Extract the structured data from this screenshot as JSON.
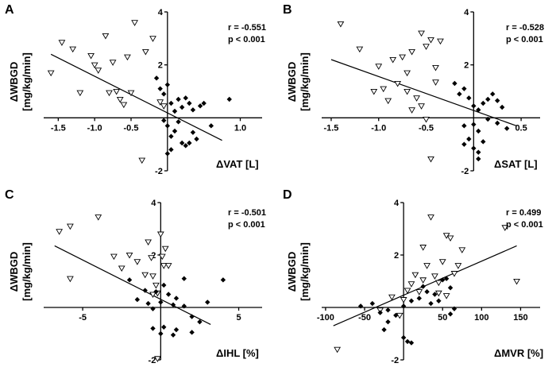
{
  "chart_data": [
    {
      "type": "scatter",
      "panel": "A",
      "xlabel": "ΔVAT [L]",
      "ylabel": "ΔWBGD",
      "ylabel_unit": "[mg/kg/min]",
      "stats": {
        "r": "r = -0.551",
        "p": "p < 0.001"
      },
      "xlim": [
        -1.7,
        1.3
      ],
      "ylim": [
        -2,
        4
      ],
      "xticks": [
        -1.5,
        -1.0,
        -0.5,
        1.0
      ],
      "xtick_labels": [
        "-1.5",
        "-1.0",
        "-0.5",
        "1.0"
      ],
      "yticks": [
        -2,
        2,
        4
      ],
      "ytick_labels": [
        "-2",
        "2",
        "4"
      ],
      "fit": [
        [
          -1.6,
          2.4
        ],
        [
          0.75,
          -0.85
        ]
      ],
      "series": [
        {
          "marker": "open-triangle",
          "points": [
            [
              -1.6,
              1.7
            ],
            [
              -1.45,
              2.85
            ],
            [
              -1.3,
              2.6
            ],
            [
              -1.2,
              0.95
            ],
            [
              -1.05,
              2.35
            ],
            [
              -1.0,
              2.0
            ],
            [
              -0.95,
              1.8
            ],
            [
              -0.85,
              3.1
            ],
            [
              -0.8,
              0.95
            ],
            [
              -0.75,
              2.1
            ],
            [
              -0.7,
              1.0
            ],
            [
              -0.65,
              0.7
            ],
            [
              -0.6,
              0.5
            ],
            [
              -0.55,
              2.3
            ],
            [
              -0.45,
              3.6
            ],
            [
              -0.5,
              0.95
            ],
            [
              -0.3,
              2.5
            ],
            [
              -0.35,
              -1.6
            ],
            [
              -0.2,
              3.0
            ],
            [
              -0.1,
              0.6
            ],
            [
              -0.05,
              0.45
            ]
          ]
        },
        {
          "marker": "filled-diamond",
          "points": [
            [
              -0.15,
              1.5
            ],
            [
              -0.1,
              1.1
            ],
            [
              -0.05,
              0.9
            ],
            [
              0.0,
              1.25
            ],
            [
              0.05,
              0.55
            ],
            [
              0.1,
              0.25
            ],
            [
              0.15,
              0.7
            ],
            [
              0.2,
              0.4
            ],
            [
              0.25,
              0.75
            ],
            [
              0.3,
              0.55
            ],
            [
              0.35,
              0.3
            ],
            [
              -0.05,
              -0.1
            ],
            [
              0.0,
              -0.3
            ],
            [
              0.05,
              -0.7
            ],
            [
              0.1,
              -0.5
            ],
            [
              0.2,
              -0.95
            ],
            [
              0.25,
              -1.05
            ],
            [
              0.3,
              -0.95
            ],
            [
              0.35,
              -0.55
            ],
            [
              0.4,
              -0.8
            ],
            [
              0.0,
              -1.35
            ],
            [
              0.05,
              -1.2
            ],
            [
              0.5,
              0.55
            ],
            [
              0.6,
              -0.3
            ],
            [
              0.85,
              0.7
            ],
            [
              0.45,
              0.45
            ],
            [
              0.15,
              -0.15
            ]
          ]
        }
      ]
    },
    {
      "type": "scatter",
      "panel": "B",
      "xlabel": "ΔSAT [L]",
      "ylabel": "ΔWBGD",
      "ylabel_unit": "[mg/kg/min]",
      "stats": {
        "r": "r = -0.528",
        "p": "p < 0.001"
      },
      "xlim": [
        -1.6,
        0.7
      ],
      "ylim": [
        -2,
        4
      ],
      "xticks": [
        -1.5,
        -1.0,
        -0.5,
        0.5
      ],
      "xtick_labels": [
        "-1.5",
        "-1.0",
        "-0.5",
        "0.5"
      ],
      "yticks": [
        -2,
        2,
        4
      ],
      "ytick_labels": [
        "-2",
        "2",
        "4"
      ],
      "fit": [
        [
          -1.5,
          2.2
        ],
        [
          0.45,
          -0.3
        ]
      ],
      "series": [
        {
          "marker": "open-triangle",
          "points": [
            [
              -1.4,
              3.55
            ],
            [
              -1.2,
              2.6
            ],
            [
              -1.05,
              1.0
            ],
            [
              -1.0,
              1.95
            ],
            [
              -0.95,
              1.1
            ],
            [
              -0.9,
              0.65
            ],
            [
              -0.85,
              2.2
            ],
            [
              -0.8,
              1.3
            ],
            [
              -0.75,
              2.3
            ],
            [
              -0.7,
              1.0
            ],
            [
              -0.7,
              1.7
            ],
            [
              -0.65,
              2.5
            ],
            [
              -0.6,
              0.75
            ],
            [
              -0.55,
              3.2
            ],
            [
              -0.5,
              2.7
            ],
            [
              -0.45,
              2.95
            ],
            [
              -0.4,
              1.35
            ],
            [
              -0.55,
              0.45
            ],
            [
              -0.5,
              -0.05
            ],
            [
              -0.4,
              1.9
            ],
            [
              -0.35,
              2.9
            ],
            [
              -0.45,
              -1.55
            ],
            [
              -0.65,
              0.3
            ]
          ]
        },
        {
          "marker": "filled-diamond",
          "points": [
            [
              -0.2,
              1.3
            ],
            [
              -0.15,
              0.9
            ],
            [
              -0.1,
              1.1
            ],
            [
              -0.05,
              0.75
            ],
            [
              0.0,
              0.45
            ],
            [
              0.05,
              0.3
            ],
            [
              0.1,
              0.55
            ],
            [
              0.15,
              0.7
            ],
            [
              0.2,
              0.9
            ],
            [
              0.25,
              0.65
            ],
            [
              0.3,
              0.4
            ],
            [
              0.0,
              -0.25
            ],
            [
              0.05,
              -0.5
            ],
            [
              0.1,
              -0.9
            ],
            [
              0.0,
              -1.15
            ],
            [
              0.05,
              -1.3
            ],
            [
              -0.05,
              -0.8
            ],
            [
              -0.1,
              -0.3
            ],
            [
              0.15,
              -0.05
            ],
            [
              0.25,
              -0.2
            ],
            [
              0.35,
              -0.4
            ],
            [
              -0.1,
              -1.0
            ],
            [
              0.05,
              -1.55
            ]
          ]
        }
      ]
    },
    {
      "type": "scatter",
      "panel": "C",
      "xlabel": "ΔIHL [%]",
      "ylabel": "ΔWBGD",
      "ylabel_unit": "[mg/kg/min]",
      "stats": {
        "r": "r = -0.501",
        "p": "p < 0.001"
      },
      "xlim": [
        -7.5,
        6.5
      ],
      "ylim": [
        -2,
        4
      ],
      "xticks": [
        -5,
        5
      ],
      "xtick_labels": [
        "-5",
        "5"
      ],
      "yticks": [
        -2,
        2,
        4
      ],
      "ytick_labels": [
        "-2",
        "2",
        "4"
      ],
      "fit": [
        [
          -6.8,
          2.35
        ],
        [
          3.2,
          -0.65
        ]
      ],
      "series": [
        {
          "marker": "open-triangle",
          "points": [
            [
              -6.5,
              2.9
            ],
            [
              -5.8,
              3.1
            ],
            [
              -5.8,
              1.1
            ],
            [
              -4.0,
              3.45
            ],
            [
              -3.0,
              1.95
            ],
            [
              -2.5,
              1.5
            ],
            [
              -2.0,
              2.0
            ],
            [
              -1.5,
              1.75
            ],
            [
              -1.0,
              1.25
            ],
            [
              -0.8,
              2.5
            ],
            [
              -0.6,
              1.9
            ],
            [
              -0.5,
              1.2
            ],
            [
              -0.3,
              0.85
            ],
            [
              -0.2,
              0.55
            ],
            [
              0.0,
              2.8
            ],
            [
              0.1,
              1.95
            ],
            [
              0.2,
              1.6
            ],
            [
              0.3,
              2.25
            ],
            [
              0.5,
              1.6
            ],
            [
              -0.2,
              -1.95
            ],
            [
              -0.5,
              0.5
            ]
          ]
        },
        {
          "marker": "filled-diamond",
          "points": [
            [
              -2.0,
              1.05
            ],
            [
              -1.5,
              0.3
            ],
            [
              -1.0,
              0.65
            ],
            [
              -0.8,
              0.15
            ],
            [
              -0.5,
              -0.05
            ],
            [
              -0.3,
              0.6
            ],
            [
              0.0,
              0.2
            ],
            [
              0.2,
              0.85
            ],
            [
              0.5,
              0.5
            ],
            [
              0.8,
              0.1
            ],
            [
              1.0,
              0.35
            ],
            [
              1.5,
              1.1
            ],
            [
              1.5,
              0.05
            ],
            [
              2.0,
              -0.35
            ],
            [
              -0.5,
              -0.8
            ],
            [
              0.0,
              -1.0
            ],
            [
              0.2,
              -0.75
            ],
            [
              0.8,
              -1.05
            ],
            [
              1.0,
              -0.85
            ],
            [
              2.0,
              -0.95
            ],
            [
              3.0,
              0.2
            ],
            [
              4.0,
              1.05
            ],
            [
              2.5,
              -0.55
            ]
          ]
        }
      ]
    },
    {
      "type": "scatter",
      "panel": "D",
      "xlabel": "ΔMVR [%]",
      "ylabel": "ΔWBGD",
      "ylabel_unit": "[mg/kg/min]",
      "stats": {
        "r": "r = 0.499",
        "p": "p < 0.001"
      },
      "xlim": [
        -105,
        175
      ],
      "ylim": [
        -2,
        4
      ],
      "xticks": [
        -100,
        -50,
        50,
        100,
        150
      ],
      "xtick_labels": [
        "-100",
        "-50",
        "50",
        "100",
        "150"
      ],
      "yticks": [
        -2,
        2,
        4
      ],
      "ytick_labels": [
        "-2",
        "2",
        "4"
      ],
      "fit": [
        [
          -90,
          -0.7
        ],
        [
          145,
          2.35
        ]
      ],
      "series": [
        {
          "marker": "open-triangle",
          "points": [
            [
              -85,
              -1.6
            ],
            [
              -30,
              -0.1
            ],
            [
              -15,
              0.4
            ],
            [
              -5,
              -0.3
            ],
            [
              0,
              0.3
            ],
            [
              5,
              0.65
            ],
            [
              10,
              0.9
            ],
            [
              15,
              1.25
            ],
            [
              20,
              0.6
            ],
            [
              25,
              2.3
            ],
            [
              30,
              1.6
            ],
            [
              35,
              3.45
            ],
            [
              40,
              1.2
            ],
            [
              45,
              0.95
            ],
            [
              50,
              1.75
            ],
            [
              55,
              2.75
            ],
            [
              60,
              2.65
            ],
            [
              65,
              1.3
            ],
            [
              70,
              1.6
            ],
            [
              75,
              2.2
            ],
            [
              55,
              0.45
            ],
            [
              45,
              0.55
            ],
            [
              130,
              3.05
            ],
            [
              145,
              1.0
            ],
            [
              25,
              1.05
            ]
          ]
        },
        {
          "marker": "filled-diamond",
          "points": [
            [
              -55,
              0.05
            ],
            [
              -40,
              0.15
            ],
            [
              -30,
              -0.2
            ],
            [
              -20,
              -0.1
            ],
            [
              -10,
              -0.3
            ],
            [
              0,
              0.05
            ],
            [
              10,
              0.25
            ],
            [
              20,
              0.35
            ],
            [
              25,
              0.8
            ],
            [
              30,
              0.6
            ],
            [
              35,
              0.15
            ],
            [
              40,
              0.5
            ],
            [
              45,
              0.25
            ],
            [
              50,
              1.05
            ],
            [
              55,
              1.1
            ],
            [
              60,
              0.75
            ],
            [
              65,
              -0.05
            ],
            [
              0,
              -1.15
            ],
            [
              5,
              -1.3
            ],
            [
              10,
              -1.35
            ],
            [
              -20,
              -0.55
            ],
            [
              -25,
              -0.85
            ],
            [
              60,
              -0.25
            ]
          ]
        }
      ]
    }
  ]
}
